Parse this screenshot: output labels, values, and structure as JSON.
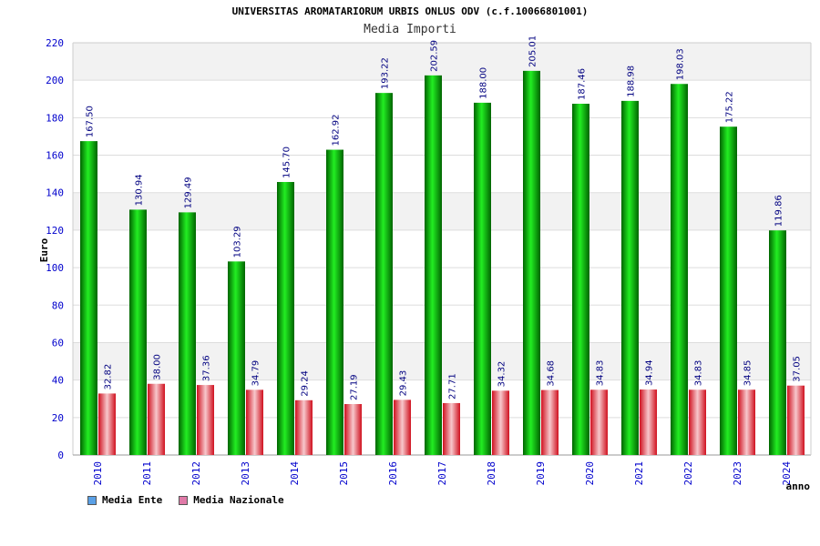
{
  "chart_data": {
    "type": "bar",
    "title": "UNIVERSITAS AROMATARIORUM URBIS ONLUS ODV (c.f.10066801001)",
    "subtitle": "Media Importi",
    "ylabel": "Euro",
    "xlabel": "anno",
    "ylim": [
      0,
      220
    ],
    "yticks": [
      0,
      20,
      40,
      60,
      80,
      100,
      120,
      140,
      160,
      180,
      200,
      220
    ],
    "categories": [
      "2010",
      "2011",
      "2012",
      "2013",
      "2014",
      "2015",
      "2016",
      "2017",
      "2018",
      "2019",
      "2020",
      "2021",
      "2022",
      "2023",
      "2024"
    ],
    "series": [
      {
        "name": "Media Ente",
        "values": [
          167.5,
          130.94,
          129.49,
          103.29,
          145.7,
          162.92,
          193.22,
          202.59,
          188.0,
          205.01,
          187.46,
          188.98,
          198.03,
          175.22,
          119.86
        ],
        "labels": [
          "167.50",
          "130.94",
          "129.49",
          "103.29",
          "145.70",
          "162.92",
          "193.22",
          "202.59",
          "188.00",
          "205.01",
          "187.46",
          "188.98",
          "198.03",
          "175.22",
          "119.86"
        ]
      },
      {
        "name": "Media Nazionale",
        "values": [
          32.82,
          38.0,
          37.36,
          34.79,
          29.24,
          27.19,
          29.43,
          27.71,
          34.32,
          34.68,
          34.83,
          34.94,
          34.83,
          34.85,
          37.05
        ],
        "labels": [
          "32.82",
          "38.00",
          "37.36",
          "34.79",
          "29.24",
          "27.19",
          "29.43",
          "27.71",
          "34.32",
          "34.68",
          "34.83",
          "34.94",
          "34.83",
          "34.85",
          "37.05"
        ]
      }
    ],
    "grid": true,
    "legend_position": "bottom-left",
    "colors": {
      "bar_ente": "#00b000",
      "bar_nazionale": "#e8192c",
      "legend_ente": "#5aa0e6",
      "legend_nazionale": "#e07aa8",
      "band": "#f2f2f2",
      "axis_text": "#0000cc"
    }
  },
  "legend": {
    "ente": "Media Ente",
    "nazionale": "Media Nazionale"
  }
}
